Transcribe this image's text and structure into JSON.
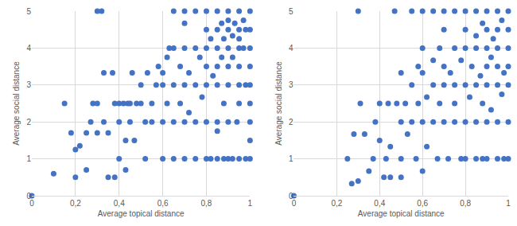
{
  "chart_data": [
    {
      "type": "scatter",
      "x_label": "Average topical distance",
      "y_label": "Average social distance",
      "color": "#4472c4",
      "marker": "circle",
      "grid": true,
      "xlim": [
        0,
        1
      ],
      "ylim": [
        0,
        5
      ],
      "xticks": [
        0,
        {
          "value": 0.2,
          "label": "0,2"
        },
        {
          "value": 0.4,
          "label": "0,4"
        },
        {
          "value": 0.6,
          "label": "0,6"
        },
        {
          "value": 0.8,
          "label": "0,8"
        },
        1
      ],
      "yticks": [
        0,
        1,
        2,
        3,
        4,
        5
      ],
      "x": [
        0,
        0.1,
        0.15,
        0.18,
        0.2,
        0.2,
        0.22,
        0.25,
        0.25,
        0.27,
        0.28,
        0.3,
        0.3,
        0.3,
        0.32,
        0.33,
        0.33,
        0.35,
        0.35,
        0.37,
        0.38,
        0.38,
        0.4,
        0.4,
        0.4,
        0.42,
        0.43,
        0.43,
        0.44,
        0.45,
        0.45,
        0.46,
        0.47,
        0.48,
        0.5,
        0.5,
        0.52,
        0.52,
        0.53,
        0.55,
        0.55,
        0.57,
        0.58,
        0.6,
        0.6,
        0.6,
        0.6,
        0.62,
        0.62,
        0.63,
        0.65,
        0.65,
        0.65,
        0.65,
        0.65,
        0.68,
        0.68,
        0.7,
        0.7,
        0.7,
        0.7,
        0.7,
        0.7,
        0.72,
        0.72,
        0.75,
        0.75,
        0.75,
        0.75,
        0.75,
        0.77,
        0.78,
        0.8,
        0.8,
        0.8,
        0.8,
        0.8,
        0.8,
        0.8,
        0.82,
        0.82,
        0.83,
        0.85,
        0.85,
        0.85,
        0.85,
        0.85,
        0.85,
        0.85,
        0.85,
        0.87,
        0.87,
        0.88,
        0.88,
        0.88,
        0.9,
        0.9,
        0.9,
        0.9,
        0.9,
        0.9,
        0.9,
        0.9,
        0.92,
        0.92,
        0.92,
        0.93,
        0.94,
        0.95,
        0.95,
        0.95,
        0.95,
        0.95,
        0.95,
        0.95,
        0.95,
        0.97,
        0.97,
        0.98,
        0.98,
        0.98,
        1,
        1,
        1,
        1,
        1,
        1,
        1,
        1,
        1
      ],
      "values": [
        0,
        0.6,
        2.5,
        1.7,
        0.5,
        1.25,
        1.35,
        0.7,
        1.7,
        2,
        2.5,
        1.7,
        2.5,
        5,
        5,
        2,
        3.33,
        0.5,
        1.7,
        3.33,
        0.5,
        2.5,
        1,
        2,
        2.5,
        2.5,
        0.7,
        1.5,
        2.5,
        2,
        2.5,
        3.33,
        1.5,
        2.5,
        2.5,
        3,
        1,
        2,
        3.33,
        2,
        2.5,
        3,
        3.5,
        1,
        2,
        3,
        3.33,
        3.75,
        2.5,
        4,
        1,
        2,
        3,
        4,
        5,
        2.5,
        3.5,
        1,
        2,
        3,
        4,
        4.67,
        5,
        3.33,
        2.25,
        1,
        2,
        3,
        4,
        5,
        3.75,
        2.67,
        1,
        2,
        3,
        3.5,
        4,
        4.5,
        5,
        1,
        4.25,
        3.25,
        1,
        1.75,
        2,
        3,
        3.5,
        4,
        4.5,
        5,
        3.75,
        4.67,
        1,
        2.5,
        4.25,
        1,
        2,
        3,
        3.5,
        4,
        4.5,
        4.75,
        5,
        1,
        3.75,
        4.33,
        4.67,
        2,
        1,
        2.5,
        3,
        3.5,
        4,
        4.25,
        4.5,
        5,
        4,
        4.75,
        1,
        3,
        4.5,
        1,
        1.5,
        2,
        2.5,
        3,
        3.5,
        4,
        4.5,
        5
      ]
    },
    {
      "type": "scatter",
      "x_label": "Average topical distance",
      "y_label": "Average social distance",
      "color": "#4472c4",
      "marker": "circle",
      "grid": true,
      "xlim": [
        0,
        1
      ],
      "ylim": [
        0,
        5
      ],
      "xticks": [
        0,
        {
          "value": 0.2,
          "label": "0,2"
        },
        {
          "value": 0.4,
          "label": "0,4"
        },
        {
          "value": 0.6,
          "label": "0,6"
        },
        {
          "value": 0.8,
          "label": "0,8"
        },
        1
      ],
      "yticks": [
        0,
        1,
        2,
        3,
        4,
        5
      ],
      "x": [
        0,
        0.25,
        0.27,
        0.28,
        0.3,
        0.3,
        0.31,
        0.33,
        0.35,
        0.37,
        0.38,
        0.4,
        0.4,
        0.42,
        0.43,
        0.44,
        0.45,
        0.45,
        0.47,
        0.48,
        0.5,
        0.5,
        0.5,
        0.5,
        0.52,
        0.53,
        0.55,
        0.55,
        0.55,
        0.57,
        0.58,
        0.58,
        0.6,
        0.6,
        0.6,
        0.6,
        0.6,
        0.62,
        0.62,
        0.65,
        0.65,
        0.65,
        0.65,
        0.67,
        0.68,
        0.68,
        0.7,
        0.7,
        0.7,
        0.7,
        0.7,
        0.72,
        0.73,
        0.75,
        0.75,
        0.75,
        0.75,
        0.75,
        0.78,
        0.78,
        0.8,
        0.8,
        0.8,
        0.8,
        0.8,
        0.8,
        0.82,
        0.83,
        0.85,
        0.85,
        0.85,
        0.85,
        0.85,
        0.85,
        0.87,
        0.88,
        0.88,
        0.88,
        0.9,
        0.9,
        0.9,
        0.9,
        0.9,
        0.9,
        0.9,
        0.92,
        0.92,
        0.93,
        0.95,
        0.95,
        0.95,
        0.95,
        0.95,
        0.95,
        0.95,
        0.97,
        0.97,
        0.98,
        0.98,
        1,
        1,
        1,
        1,
        1,
        1,
        1
      ],
      "values": [
        0,
        1,
        0.33,
        1.67,
        0.4,
        5,
        2.5,
        1.67,
        0.67,
        1,
        2,
        1.5,
        2.5,
        0.5,
        1,
        2.5,
        1.33,
        0.5,
        5,
        2.5,
        1,
        2,
        0.5,
        3.33,
        2.5,
        1.67,
        2,
        3,
        5,
        1,
        2.5,
        3.5,
        0.67,
        2,
        3.33,
        4,
        5,
        1.33,
        2.67,
        2,
        3,
        3.67,
        5,
        1,
        2.5,
        4,
        2,
        3,
        3.5,
        4.5,
        5,
        1,
        3.33,
        2,
        2.5,
        3,
        4,
        5,
        1,
        3.67,
        1,
        2,
        3,
        4,
        4.5,
        5,
        2.67,
        3.5,
        1,
        2,
        3,
        4,
        4.33,
        5,
        3.25,
        1,
        2.5,
        4.67,
        1,
        2,
        3,
        3.5,
        4,
        4.5,
        5,
        2.33,
        3.75,
        4.25,
        1,
        2,
        3,
        3.5,
        4,
        4.5,
        5,
        2.75,
        4.75,
        1,
        3.33,
        1,
        2,
        3,
        3.5,
        4,
        4.5,
        5
      ]
    }
  ]
}
